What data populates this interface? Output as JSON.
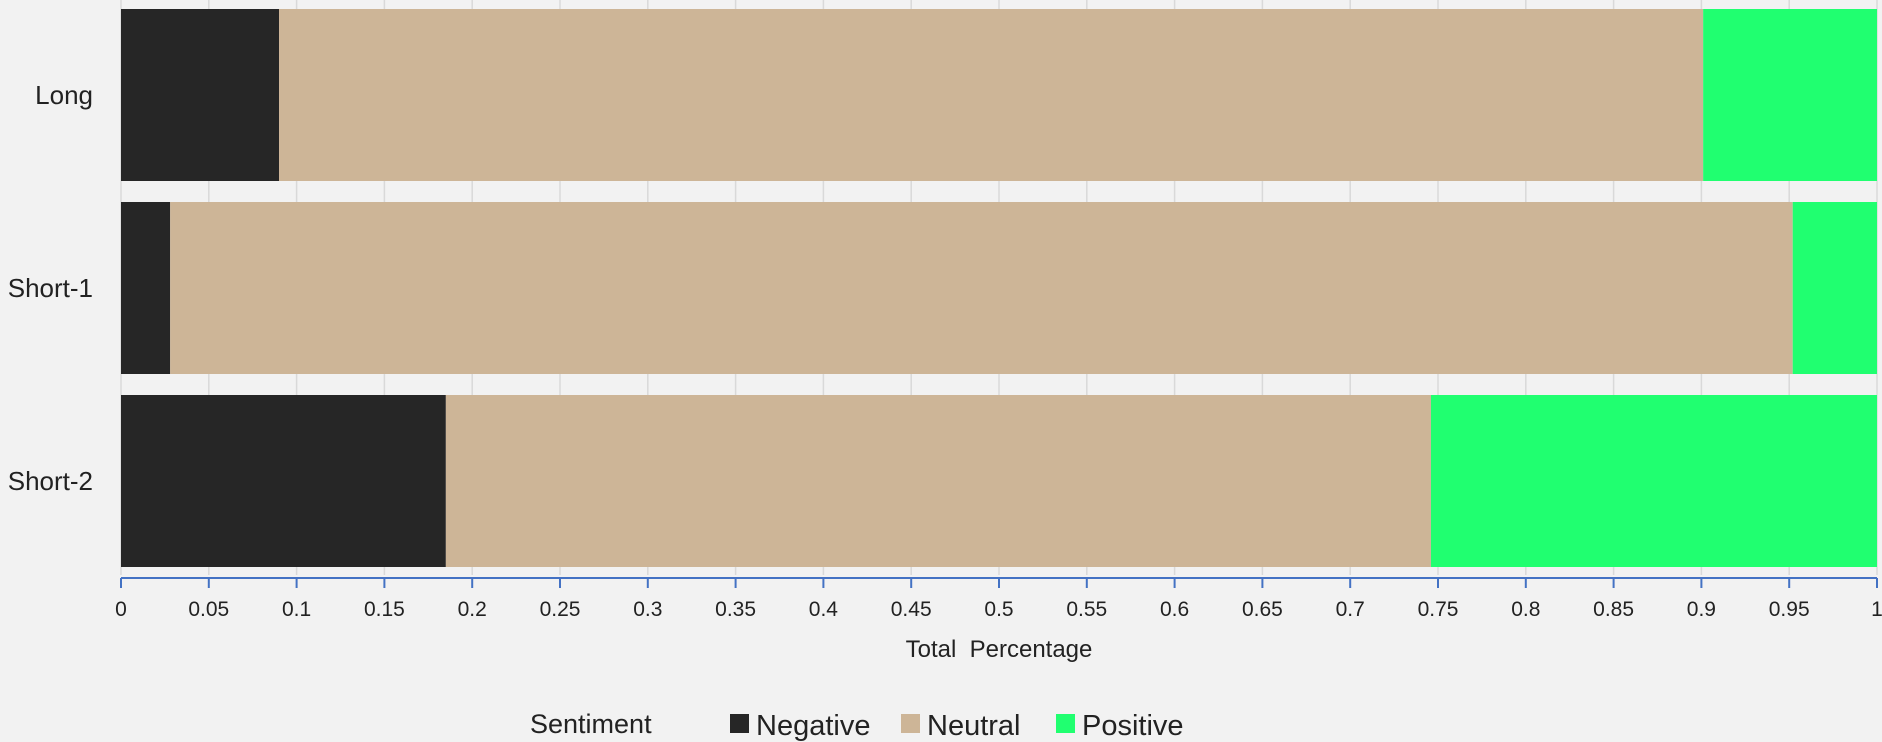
{
  "chart_data": {
    "type": "bar",
    "orientation": "horizontal",
    "stacked": true,
    "categories": [
      "Long",
      "Short-1",
      "Short-2"
    ],
    "series": [
      {
        "name": "Negative",
        "color": "#262626",
        "values": [
          0.09,
          0.028,
          0.185
        ]
      },
      {
        "name": "Neutral",
        "color": "#cdb597",
        "values": [
          0.811,
          0.924,
          0.561
        ]
      },
      {
        "name": "Positive",
        "color": "#20ff70",
        "values": [
          0.099,
          0.048,
          0.254
        ]
      }
    ],
    "xlabel": "Total  Percentage",
    "xlim": [
      0,
      1
    ],
    "x_ticks": [
      "0",
      "0.05",
      "0.1",
      "0.15",
      "0.2",
      "0.25",
      "0.3",
      "0.35",
      "0.4",
      "0.45",
      "0.5",
      "0.55",
      "0.6",
      "0.65",
      "0.7",
      "0.75",
      "0.8",
      "0.85",
      "0.9",
      "0.95",
      "1"
    ],
    "grid": true,
    "legend": {
      "title": "Sentiment",
      "position": "bottom"
    },
    "axis_color": "#4472c4",
    "grid_color": "#d9d9d9"
  }
}
